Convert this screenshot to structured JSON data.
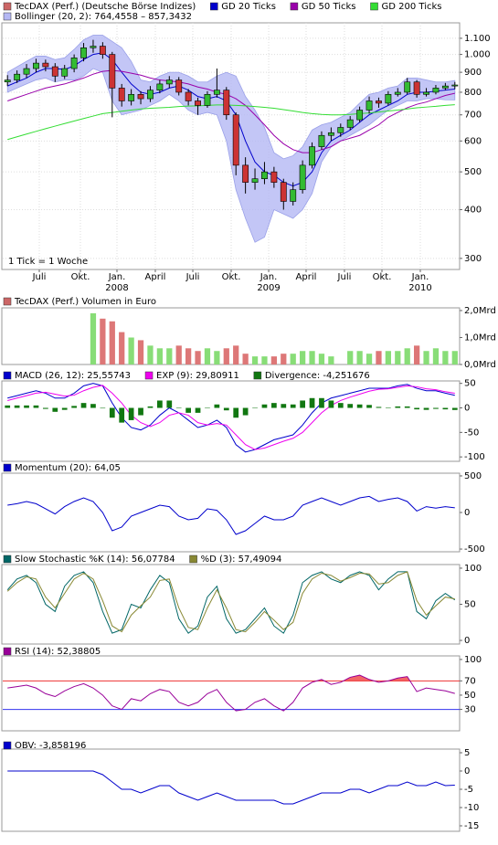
{
  "chart_data": [
    {
      "type": "candlestick",
      "name": "TecDAX (Perf.) (Deutsche Börse Indizes)",
      "color": "#cc6666",
      "up_color": "#33bb33",
      "down_color": "#cc3333",
      "open": [
        850,
        860,
        890,
        920,
        950,
        930,
        880,
        920,
        980,
        1040,
        1050,
        1000,
        820,
        760,
        790,
        770,
        810,
        840,
        860,
        800,
        760,
        740,
        790,
        810,
        700,
        520,
        470,
        480,
        500,
        470,
        420,
        450,
        520,
        580,
        620,
        630,
        650,
        680,
        720,
        760,
        750,
        790,
        800,
        850,
        790,
        800,
        820,
        830
      ],
      "high": [
        885,
        910,
        945,
        975,
        970,
        950,
        940,
        1000,
        1070,
        1090,
        1075,
        1015,
        840,
        815,
        805,
        830,
        860,
        880,
        875,
        815,
        775,
        805,
        920,
        825,
        710,
        545,
        510,
        530,
        515,
        480,
        470,
        535,
        595,
        635,
        650,
        665,
        695,
        735,
        780,
        775,
        805,
        820,
        870,
        860,
        820,
        835,
        845,
        850
      ],
      "low": [
        830,
        845,
        870,
        900,
        905,
        850,
        865,
        900,
        960,
        1010,
        975,
        690,
        735,
        740,
        745,
        755,
        795,
        820,
        785,
        740,
        700,
        730,
        775,
        680,
        490,
        440,
        450,
        465,
        455,
        400,
        410,
        440,
        510,
        570,
        600,
        615,
        640,
        670,
        705,
        730,
        740,
        780,
        790,
        775,
        780,
        790,
        810,
        815
      ],
      "close": [
        860,
        890,
        920,
        950,
        930,
        880,
        920,
        980,
        1040,
        1050,
        1000,
        820,
        760,
        790,
        770,
        810,
        840,
        860,
        800,
        760,
        740,
        790,
        810,
        700,
        520,
        470,
        480,
        500,
        470,
        420,
        450,
        520,
        580,
        620,
        630,
        650,
        680,
        720,
        760,
        750,
        790,
        800,
        850,
        790,
        800,
        820,
        830,
        835
      ],
      "series": [
        {
          "name": "GD 20 Ticks",
          "color": "#0000cc",
          "values": [
            830,
            850,
            870,
            900,
            920,
            920,
            915,
            935,
            970,
            1000,
            1010,
            970,
            900,
            840,
            800,
            790,
            800,
            820,
            830,
            810,
            780,
            770,
            780,
            760,
            700,
            600,
            530,
            500,
            490,
            470,
            460,
            470,
            500,
            560,
            600,
            620,
            640,
            670,
            700,
            720,
            740,
            760,
            790,
            800,
            800,
            805,
            810,
            815
          ]
        },
        {
          "name": "GD 50 Ticks",
          "color": "#9900aa",
          "values": [
            760,
            775,
            790,
            805,
            820,
            830,
            840,
            855,
            870,
            890,
            905,
            910,
            905,
            895,
            885,
            870,
            860,
            855,
            850,
            840,
            825,
            815,
            800,
            790,
            770,
            740,
            700,
            660,
            620,
            590,
            570,
            560,
            560,
            570,
            580,
            600,
            610,
            620,
            640,
            660,
            690,
            710,
            730,
            745,
            755,
            770,
            785,
            795
          ]
        },
        {
          "name": "GD 200 Ticks",
          "color": "#33dd33",
          "values": [
            605,
            615,
            625,
            635,
            645,
            655,
            665,
            675,
            685,
            695,
            705,
            710,
            715,
            720,
            725,
            728,
            730,
            732,
            735,
            737,
            738,
            740,
            742,
            742,
            740,
            738,
            735,
            732,
            728,
            722,
            716,
            710,
            705,
            702,
            700,
            700,
            702,
            705,
            708,
            712,
            716,
            720,
            725,
            730,
            733,
            736,
            740,
            743
          ]
        }
      ],
      "band": {
        "name": "Bollinger (20, 2): 764,4558 – 857,3432",
        "color": "#b4b8f4",
        "upper": [
          900,
          930,
          960,
          990,
          990,
          970,
          980,
          1030,
          1090,
          1120,
          1120,
          1080,
          1040,
          960,
          860,
          850,
          880,
          900,
          900,
          880,
          850,
          850,
          880,
          900,
          880,
          780,
          720,
          650,
          560,
          540,
          550,
          580,
          640,
          660,
          670,
          690,
          710,
          750,
          790,
          800,
          820,
          830,
          870,
          870,
          860,
          850,
          850,
          857.34
        ],
        "lower": [
          800,
          820,
          840,
          860,
          870,
          850,
          860,
          860,
          880,
          920,
          900,
          760,
          700,
          710,
          720,
          740,
          760,
          790,
          760,
          720,
          700,
          710,
          700,
          600,
          450,
          380,
          330,
          340,
          400,
          390,
          380,
          400,
          440,
          530,
          580,
          600,
          620,
          640,
          660,
          690,
          720,
          740,
          760,
          760,
          770,
          770,
          765,
          764.46
        ]
      },
      "log_scale": true,
      "grid": true,
      "ylim": [
        281,
        1205
      ],
      "yticks": [
        {
          "value": 1100,
          "label": "1.100"
        },
        {
          "value": 1000,
          "label": "1.000"
        },
        900,
        800,
        700,
        600,
        500,
        400,
        300
      ],
      "xlim": [
        -0.5,
        47.5
      ],
      "xticks": [
        {
          "value": 3.34,
          "label": "Juli"
        },
        {
          "value": 7.66,
          "label": "Okt."
        },
        {
          "value": 11.5,
          "label": "Jan."
        },
        {
          "value": 15.53,
          "label": "April"
        },
        {
          "value": 19.47,
          "label": "Juli"
        },
        {
          "value": 23.5,
          "label": "Okt."
        },
        {
          "value": 27.44,
          "label": "Jan."
        },
        {
          "value": 31.37,
          "label": "April"
        },
        {
          "value": 35.4,
          "label": "Juli"
        },
        {
          "value": 39.34,
          "label": "Okt."
        },
        {
          "value": 43.37,
          "label": "Jan."
        }
      ],
      "year_ticks": [
        {
          "value": 11.5,
          "label": "2008"
        },
        {
          "value": 27.44,
          "label": "2009"
        },
        {
          "value": 43.37,
          "label": "2010"
        }
      ],
      "annotation": "1 Tick = 1 Woche"
    },
    {
      "type": "bar",
      "up_color": "#88dd77",
      "down_color": "#dd7777",
      "series": [
        {
          "name": "TecDAX (Perf.) Volumen in Euro",
          "color": "#cc6666",
          "values": [
            null,
            null,
            null,
            null,
            null,
            null,
            null,
            null,
            null,
            1.9,
            1.7,
            1.6,
            1.2,
            1,
            0.9,
            0.7,
            0.6,
            0.6,
            0.7,
            0.6,
            0.5,
            0.6,
            0.5,
            0.6,
            0.7,
            0.4,
            0.3,
            0.3,
            0.3,
            0.4,
            0.4,
            0.5,
            0.5,
            0.4,
            0.3,
            null,
            0.5,
            0.5,
            0.4,
            0.5,
            0.5,
            0.5,
            0.6,
            0.7,
            0.5,
            0.6,
            0.5,
            0.5
          ]
        }
      ],
      "ylim": [
        0,
        2.1
      ],
      "yticks": [
        {
          "value": 2,
          "label": "2,0Mrd"
        },
        {
          "value": 1,
          "label": "1,0Mrd"
        },
        {
          "value": 0,
          "label": "0,0Mrd"
        }
      ]
    },
    {
      "type": "line",
      "series": [
        {
          "name": "MACD (26, 12): 25,55743",
          "color": "#0000cc",
          "values": [
            20,
            25,
            30,
            35,
            30,
            20,
            20,
            30,
            45,
            50,
            45,
            10,
            -20,
            -40,
            -45,
            -35,
            -15,
            0,
            -10,
            -25,
            -40,
            -35,
            -25,
            -40,
            -75,
            -90,
            -85,
            -75,
            -65,
            -60,
            -55,
            -35,
            -10,
            10,
            20,
            25,
            30,
            35,
            40,
            40,
            40,
            45,
            48,
            40,
            35,
            35,
            30,
            25.56
          ]
        },
        {
          "name": "EXP (9): 29,80911",
          "color": "#ee00ee",
          "values": [
            15,
            20,
            25,
            30,
            32,
            28,
            24,
            26,
            35,
            42,
            46,
            30,
            10,
            -15,
            -30,
            -38,
            -30,
            -15,
            -10,
            -15,
            -30,
            -35,
            -32,
            -35,
            -55,
            -75,
            -85,
            -82,
            -75,
            -68,
            -62,
            -50,
            -30,
            -10,
            5,
            15,
            22,
            28,
            34,
            38,
            39,
            42,
            45,
            43,
            39,
            37,
            33,
            29.81
          ]
        },
        {
          "name": "Divergence: -4,251676",
          "color": "#117711",
          "kind": "bar",
          "values": [
            5,
            5,
            5,
            5,
            -2,
            -8,
            -4,
            4,
            10,
            8,
            -1,
            -20,
            -30,
            -25,
            -15,
            3,
            15,
            15,
            0,
            -10,
            -10,
            0,
            7,
            -5,
            -20,
            -15,
            0,
            7,
            10,
            8,
            7,
            15,
            20,
            20,
            15,
            10,
            8,
            7,
            6,
            2,
            1,
            3,
            3,
            -3,
            -4,
            -2,
            -3,
            -4.25
          ]
        }
      ],
      "ylim": [
        -109,
        55
      ],
      "yticks": [
        50,
        0,
        -50,
        -100
      ]
    },
    {
      "type": "line",
      "series": [
        {
          "name": "Momentum (20): 64,05",
          "color": "#0000cc",
          "values": [
            100,
            120,
            150,
            120,
            50,
            -20,
            80,
            150,
            200,
            150,
            0,
            -250,
            -200,
            -50,
            0,
            50,
            100,
            80,
            -50,
            -100,
            -80,
            50,
            30,
            -100,
            -300,
            -250,
            -150,
            -50,
            -100,
            -100,
            -50,
            100,
            150,
            200,
            150,
            100,
            150,
            200,
            220,
            150,
            180,
            200,
            150,
            20,
            80,
            60,
            80,
            64.05
          ]
        }
      ],
      "ylim": [
        -537,
        537
      ],
      "yticks": [
        500,
        0,
        -500
      ]
    },
    {
      "type": "line",
      "series": [
        {
          "name": "Slow Stochastic %K (14): 56,07784",
          "color": "#006666",
          "values": [
            70,
            85,
            90,
            80,
            50,
            40,
            75,
            90,
            95,
            80,
            40,
            10,
            15,
            50,
            45,
            70,
            90,
            80,
            30,
            10,
            20,
            60,
            75,
            30,
            10,
            15,
            30,
            45,
            20,
            10,
            35,
            80,
            90,
            95,
            85,
            80,
            90,
            95,
            90,
            70,
            85,
            95,
            95,
            40,
            30,
            55,
            65,
            56.08
          ]
        },
        {
          "name": "%D (3): 57,49094",
          "color": "#888833",
          "values": [
            68,
            80,
            88,
            85,
            60,
            45,
            65,
            85,
            93,
            85,
            55,
            20,
            12,
            35,
            48,
            60,
            83,
            85,
            45,
            18,
            15,
            45,
            70,
            45,
            15,
            12,
            25,
            40,
            28,
            15,
            25,
            65,
            85,
            93,
            90,
            82,
            87,
            93,
            92,
            78,
            80,
            90,
            95,
            55,
            35,
            48,
            60,
            57.49
          ]
        }
      ],
      "ylim": [
        -5,
        105
      ],
      "yticks": [
        100,
        50,
        0
      ]
    },
    {
      "type": "line",
      "overbought": 70,
      "oversold": 30,
      "overbought_color": "#ee3333",
      "oversold_color": "#3333ee",
      "series": [
        {
          "name": "RSI (14): 52,38805",
          "color": "#990099",
          "values": [
            60,
            62,
            64,
            60,
            52,
            48,
            56,
            62,
            66,
            60,
            50,
            35,
            30,
            45,
            42,
            52,
            58,
            55,
            40,
            35,
            40,
            52,
            58,
            40,
            28,
            30,
            40,
            45,
            35,
            28,
            40,
            60,
            68,
            72,
            65,
            68,
            75,
            78,
            72,
            68,
            70,
            74,
            76,
            55,
            60,
            58,
            56,
            52.39
          ]
        }
      ],
      "ylim": [
        0,
        105
      ],
      "yticks": [
        100,
        70,
        50,
        30
      ]
    },
    {
      "type": "line",
      "series": [
        {
          "name": "OBV: -3,858196",
          "color": "#0000cc",
          "values": [
            0,
            0,
            0,
            0,
            0,
            0,
            0,
            0,
            0,
            0,
            -1,
            -3,
            -5,
            -5,
            -6,
            -5,
            -4,
            -4,
            -6,
            -7,
            -8,
            -7,
            -6,
            -7,
            -8,
            -8,
            -8,
            -8,
            -8,
            -9,
            -9,
            -8,
            -7,
            -6,
            -6,
            -6,
            -5,
            -5,
            -6,
            -5,
            -4,
            -4,
            -3,
            -4,
            -4,
            -3,
            -4,
            -3.86
          ]
        }
      ],
      "ylim": [
        -16.5,
        6
      ],
      "yticks": [
        5,
        0,
        -5,
        -10,
        -15
      ]
    }
  ]
}
